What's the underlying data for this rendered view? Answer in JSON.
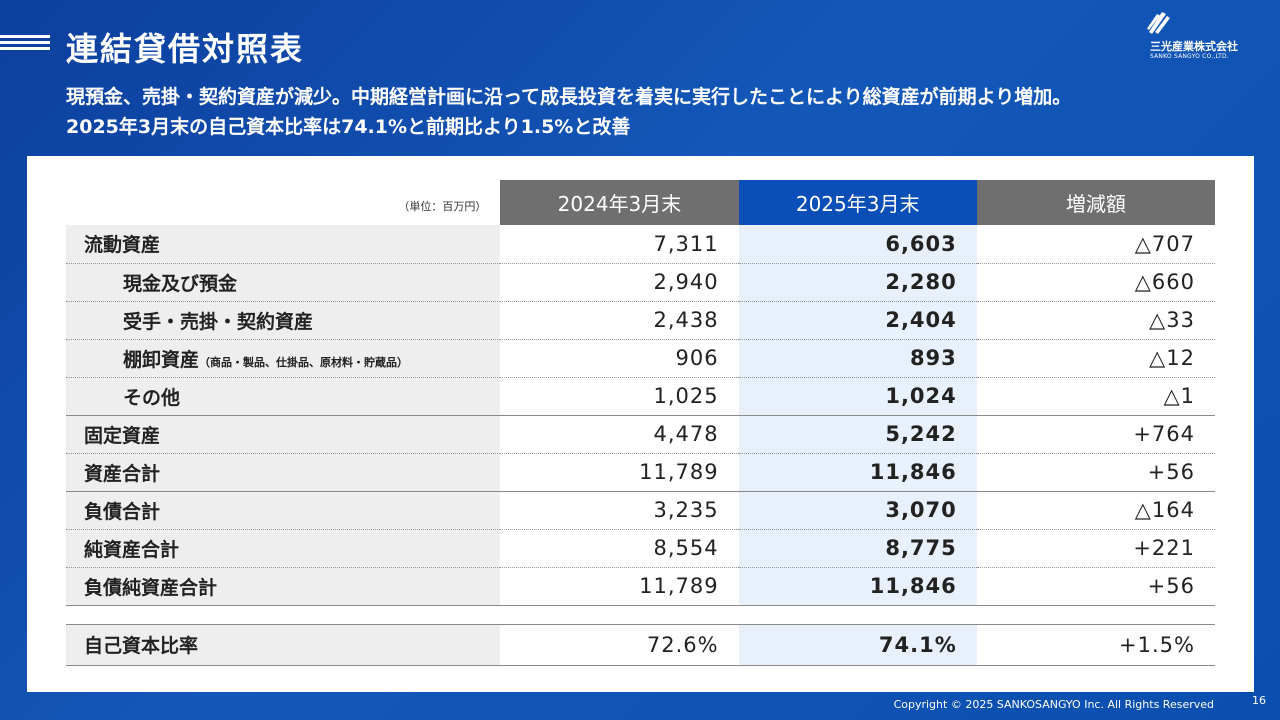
{
  "header": {
    "title": "連結貸借対照表",
    "subtitle_line1": "現預金、売掛・契約資産が減少。中期経営計画に沿って成長投資を着実に実行したことにより総資産が前期より増加。",
    "subtitle_line2": "2025年3月末の自己資本比率は74.1%と前期比より1.5%と改善"
  },
  "logo": {
    "name": "三光産業株式会社",
    "en": "SANKO SANGYO CO.,LTD."
  },
  "table": {
    "unit": "（単位：百万円）",
    "columns": [
      "2024年3月末",
      "2025年3月末",
      "増減額"
    ],
    "rows": [
      {
        "label": "流動資産",
        "v2024": "7,311",
        "v2025": "6,603",
        "diff": "△707"
      },
      {
        "label": "現金及び預金",
        "v2024": "2,940",
        "v2025": "2,280",
        "diff": "△660"
      },
      {
        "label": "受手・売掛・契約資産",
        "v2024": "2,438",
        "v2025": "2,404",
        "diff": "△33"
      },
      {
        "label": "棚卸資産",
        "label_note": "（商品・製品、仕掛品、原材料・貯蔵品）",
        "v2024": "906",
        "v2025": "893",
        "diff": "△12"
      },
      {
        "label": "その他",
        "v2024": "1,025",
        "v2025": "1,024",
        "diff": "△1"
      },
      {
        "label": "固定資産",
        "v2024": "4,478",
        "v2025": "5,242",
        "diff": "+764"
      },
      {
        "label": "資産合計",
        "v2024": "11,789",
        "v2025": "11,846",
        "diff": "+56"
      },
      {
        "label": "負債合計",
        "v2024": "3,235",
        "v2025": "3,070",
        "diff": "△164"
      },
      {
        "label": "純資産合計",
        "v2024": "8,554",
        "v2025": "8,775",
        "diff": "+221"
      },
      {
        "label": "負債純資産合計",
        "v2024": "11,789",
        "v2025": "11,846",
        "diff": "+56"
      }
    ],
    "ratio": {
      "label": "自己資本比率",
      "v2024": "72.6%",
      "v2025": "74.1%",
      "diff": "+1.5%"
    }
  },
  "footer": {
    "copyright": "Copyright © 2025 SANKOSANGYO Inc. All Rights Reserved",
    "page": "16"
  }
}
